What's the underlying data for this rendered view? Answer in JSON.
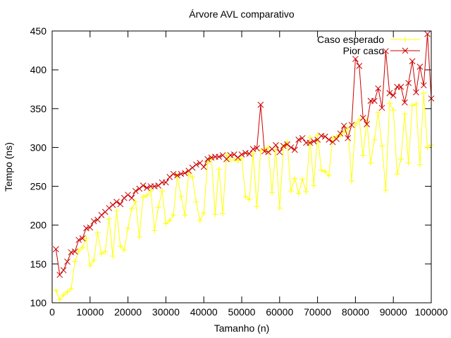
{
  "chart_data": {
    "type": "line",
    "title": "Árvore AVL comparativo",
    "xlabel": "Tamanho (n)",
    "ylabel": "Tempo (ns)",
    "xlim": [
      0,
      100000
    ],
    "ylim": [
      100,
      450
    ],
    "xticks": [
      0,
      10000,
      20000,
      30000,
      40000,
      50000,
      60000,
      70000,
      80000,
      90000,
      100000
    ],
    "yticks": [
      100,
      150,
      200,
      250,
      300,
      350,
      400,
      450
    ],
    "grid": false,
    "legend_position": "top-right",
    "x": [
      1000,
      2000,
      3000,
      4000,
      5000,
      6000,
      7000,
      8000,
      9000,
      10000,
      11000,
      12000,
      13000,
      14000,
      15000,
      16000,
      17000,
      18000,
      19000,
      20000,
      21000,
      22000,
      23000,
      24000,
      25000,
      26000,
      27000,
      28000,
      29000,
      30000,
      31000,
      32000,
      33000,
      34000,
      35000,
      36000,
      37000,
      38000,
      39000,
      40000,
      41000,
      42000,
      43000,
      44000,
      45000,
      46000,
      47000,
      48000,
      49000,
      50000,
      51000,
      52000,
      53000,
      54000,
      55000,
      56000,
      57000,
      58000,
      59000,
      60000,
      61000,
      62000,
      63000,
      64000,
      65000,
      66000,
      67000,
      68000,
      69000,
      70000,
      71000,
      72000,
      73000,
      74000,
      75000,
      76000,
      77000,
      78000,
      79000,
      80000,
      81000,
      82000,
      83000,
      84000,
      85000,
      86000,
      87000,
      88000,
      89000,
      90000,
      91000,
      92000,
      93000,
      94000,
      95000,
      96000,
      97000,
      98000,
      99000,
      100000
    ],
    "series": [
      {
        "name": "Caso esperado",
        "color": "#ffff00",
        "marker": "plus",
        "values": [
          116,
          104,
          110,
          114,
          118,
          153,
          167,
          171,
          183,
          148,
          155,
          190,
          163,
          166,
          208,
          160,
          218,
          173,
          168,
          196,
          221,
          230,
          185,
          236,
          238,
          244,
          193,
          223,
          244,
          202,
          206,
          213,
          264,
          237,
          213,
          266,
          262,
          230,
          206,
          216,
          280,
          286,
          214,
          272,
          215,
          290,
          284,
          284,
          283,
          286,
          237,
          233,
          292,
          224,
          296,
          297,
          300,
          242,
          297,
          222,
          301,
          307,
          244,
          260,
          241,
          259,
          243,
          313,
          251,
          316,
          271,
          269,
          264,
          312,
          314,
          315,
          320,
          325,
          257,
          330,
          336,
          290,
          335,
          280,
          310,
          345,
          302,
          245,
          357,
          348,
          266,
          285,
          343,
          280,
          354,
          356,
          278,
          370,
          300,
          303
        ]
      },
      {
        "name": "Pior caso",
        "color": "#cc0000",
        "marker": "cross",
        "values": [
          169,
          136,
          142,
          153,
          165,
          166,
          181,
          183,
          196,
          197,
          205,
          207,
          213,
          217,
          222,
          226,
          230,
          227,
          235,
          239,
          235,
          244,
          247,
          251,
          248,
          250,
          250,
          251,
          255,
          255,
          262,
          266,
          264,
          266,
          267,
          270,
          274,
          278,
          280,
          275,
          285,
          287,
          288,
          288,
          290,
          285,
          290,
          291,
          287,
          291,
          293,
          292,
          298,
          299,
          355,
          295,
          294,
          298,
          303,
          294,
          302,
          304,
          300,
          297,
          310,
          312,
          306,
          306,
          308,
          310,
          315,
          314,
          310,
          307,
          311,
          318,
          328,
          312,
          329,
          414,
          405,
          338,
          330,
          360,
          360,
          376,
          351,
          424,
          370,
          367,
          378,
          378,
          358,
          383,
          411,
          371,
          404,
          380,
          446,
          363
        ]
      }
    ]
  }
}
